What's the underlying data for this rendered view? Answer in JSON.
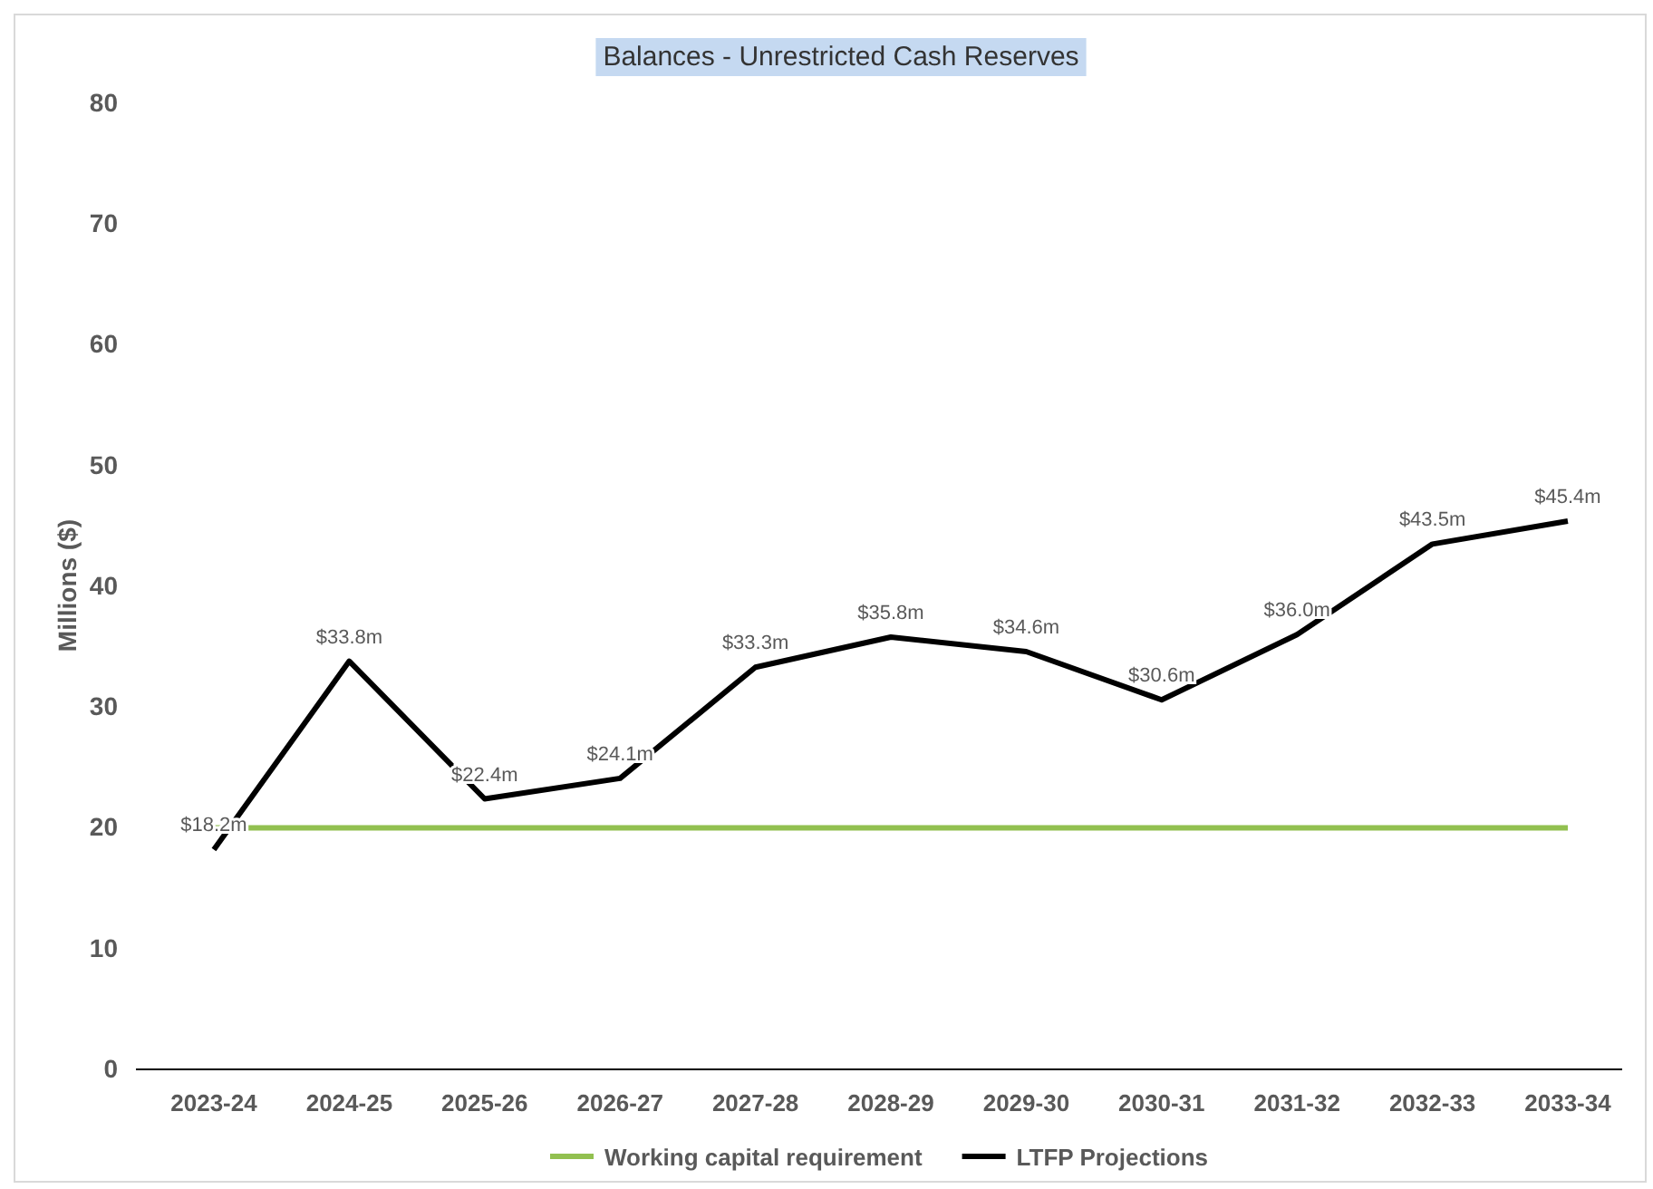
{
  "chart_data": {
    "type": "line",
    "title": "Balances - Unrestricted Cash Reserves",
    "ylabel": "Millions ($)",
    "categories": [
      "2023-24",
      "2024-25",
      "2025-26",
      "2026-27",
      "2027-28",
      "2028-29",
      "2029-30",
      "2030-31",
      "2031-32",
      "2032-33",
      "2033-34"
    ],
    "series": [
      {
        "name": "Working capital requirement",
        "color": "#92c050",
        "values": [
          20,
          20,
          20,
          20,
          20,
          20,
          20,
          20,
          20,
          20,
          20
        ]
      },
      {
        "name": "LTFP Projections",
        "color": "#000000",
        "values": [
          18.2,
          33.8,
          22.4,
          24.1,
          33.3,
          35.8,
          34.6,
          30.6,
          36.0,
          43.5,
          45.4
        ],
        "value_labels": [
          "$18.2m",
          "$33.8m",
          "$22.4m",
          "$24.1m",
          "$33.3m",
          "$35.8m",
          "$34.6m",
          "$30.6m",
          "$36.0m",
          "$43.5m",
          "$45.4m"
        ]
      }
    ],
    "ylim": [
      0,
      80
    ],
    "yticks": [
      0,
      10,
      20,
      30,
      40,
      50,
      60,
      70,
      80
    ],
    "grid": false,
    "legend": "bottom",
    "marker": "none",
    "line_style": "solid"
  }
}
